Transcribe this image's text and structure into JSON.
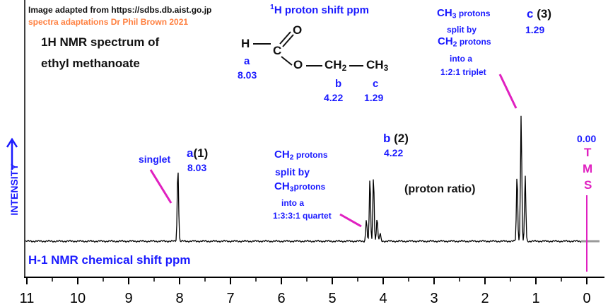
{
  "credits": {
    "source": "Image adapted from https://sdbs.db.aist.go.jp",
    "author": "spectra adaptations Dr Phil Brown 2021"
  },
  "title": {
    "line1": "1H NMR spectrum of",
    "line2": "ethyl methanoate"
  },
  "shift_heading": {
    "sup": "1",
    "main": "H proton shift ppm"
  },
  "molecule": {
    "atoms": {
      "h": "H",
      "c1": "C",
      "o_double": "O",
      "o_ester": "O",
      "ch2": "CH",
      "ch2_sub": "2",
      "ch3": "CH",
      "ch3_sub": "3"
    },
    "labels": [
      {
        "letter": "a",
        "shift": "8.03"
      },
      {
        "letter": "b",
        "shift": "4.22"
      },
      {
        "letter": "c",
        "shift": "1.29"
      }
    ]
  },
  "peak_labels": {
    "a": {
      "letter": "a",
      "ratio": "(1)",
      "shift": "8.03",
      "note": "singlet"
    },
    "b": {
      "letter": "b",
      "ratio": "(2)",
      "shift": "4.22",
      "note": {
        "l1": "CH",
        "l1_sub": "2",
        "l1_rest": " protons",
        "l2": "split by",
        "l3": "CH",
        "l3_sub": "3",
        "l3_rest": "protons",
        "l4": "into a",
        "l5": "1:3:3:1 quartet"
      }
    },
    "c": {
      "letter": "c",
      "ratio": "(3)",
      "shift": "1.29",
      "note": {
        "l1": "CH",
        "l1_sub": "3",
        "l1_rest": " protons",
        "l2": "split by",
        "l3": "CH",
        "l3_sub": "2",
        "l3_rest": " protons",
        "l4": "into a",
        "l5": "1:2:1 triplet"
      }
    }
  },
  "proton_ratio_label": "(proton ratio)",
  "tms": {
    "shift": "0.00",
    "letters": [
      "T",
      "M",
      "S"
    ]
  },
  "y_axis_label": "INTENSITY",
  "x_axis_label": "H-1 NMR chemical shift  ppm",
  "colors": {
    "label_blue": "#1a1aff",
    "pointer_magenta": "#e020c0",
    "credit_orange": "#ff8040",
    "trace": "#000000"
  },
  "chart_data": {
    "type": "line",
    "xlabel": "H-1 NMR chemical shift  ppm",
    "ylabel": "INTENSITY",
    "xlim": [
      11,
      0
    ],
    "x_reversed": true,
    "ticks": [
      11,
      10,
      9,
      8,
      7,
      6,
      5,
      4,
      3,
      2,
      1,
      0
    ],
    "peaks": [
      {
        "group": "a",
        "center_ppm": 8.03,
        "multiplicity": "singlet",
        "proton_ratio": 1,
        "lines": [
          {
            "ppm": 8.035,
            "rel": 0.88
          },
          {
            "ppm": 8.025,
            "rel": 0.32
          }
        ]
      },
      {
        "group": "b",
        "center_ppm": 4.22,
        "multiplicity": "quartet",
        "proton_ratio": 2,
        "lines": [
          {
            "ppm": 4.33,
            "rel": 0.34
          },
          {
            "ppm": 4.26,
            "rel": 0.96
          },
          {
            "ppm": 4.19,
            "rel": 1.0
          },
          {
            "ppm": 4.12,
            "rel": 0.36
          },
          {
            "ppm": 4.06,
            "rel": 0.12
          }
        ]
      },
      {
        "group": "c",
        "center_ppm": 1.29,
        "multiplicity": "triplet",
        "proton_ratio": 3,
        "lines": [
          {
            "ppm": 1.37,
            "rel": 1.02
          },
          {
            "ppm": 1.29,
            "rel": 1.93
          },
          {
            "ppm": 1.21,
            "rel": 1.0
          }
        ]
      }
    ],
    "tms_ppm": 0.0
  }
}
